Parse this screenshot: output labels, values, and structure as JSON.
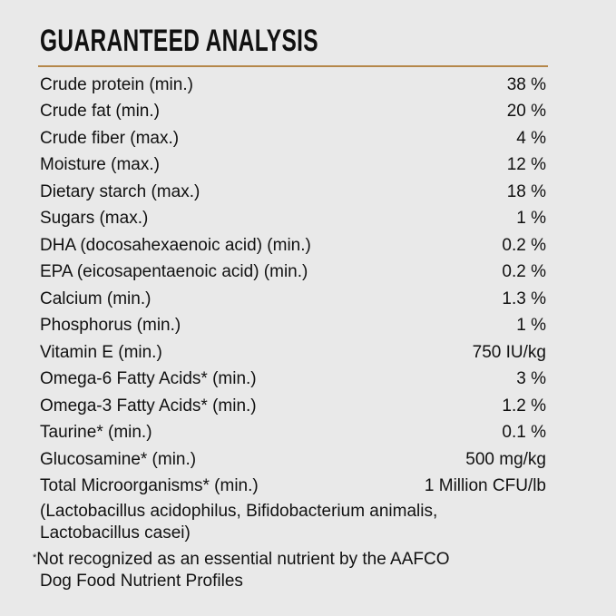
{
  "title": "GUARANTEED ANALYSIS",
  "accent_color": "#b5874a",
  "rows": [
    {
      "label": "Crude protein (min.)",
      "value": "38 %"
    },
    {
      "label": "Crude fat (min.)",
      "value": "20 %"
    },
    {
      "label": "Crude fiber (max.)",
      "value": "4 %"
    },
    {
      "label": "Moisture (max.)",
      "value": "12 %"
    },
    {
      "label": "Dietary starch (max.)",
      "value": "18 %"
    },
    {
      "label": "Sugars (max.)",
      "value": "1 %"
    },
    {
      "label": "DHA (docosahexaenoic acid) (min.)",
      "value": "0.2 %"
    },
    {
      "label": "EPA (eicosapentaenoic acid) (min.)",
      "value": "0.2 %"
    },
    {
      "label": "Calcium (min.)",
      "value": "1.3 %"
    },
    {
      "label": "Phosphorus (min.)",
      "value": "1 %"
    },
    {
      "label": "Vitamin E (min.)",
      "value": "750 IU/kg"
    },
    {
      "label": "Omega-6 Fatty Acids* (min.)",
      "value": "3 %"
    },
    {
      "label": "Omega-3 Fatty Acids* (min.)",
      "value": "1.2 %"
    },
    {
      "label": "Taurine* (min.)",
      "value": "0.1 %"
    },
    {
      "label": "Glucosamine* (min.)",
      "value": "500 mg/kg"
    },
    {
      "label": "Total Microorganisms* (min.)",
      "value": "1 Million CFU/lb"
    }
  ],
  "microorganisms_note": [
    "(Lactobacillus acidophilus, Bifidobacterium animalis,",
    "Lactobacillus casei)"
  ],
  "footnote": {
    "mark": "*",
    "lines": [
      "Not recognized as an essential nutrient by the AAFCO",
      "Dog Food Nutrient Profiles"
    ]
  }
}
